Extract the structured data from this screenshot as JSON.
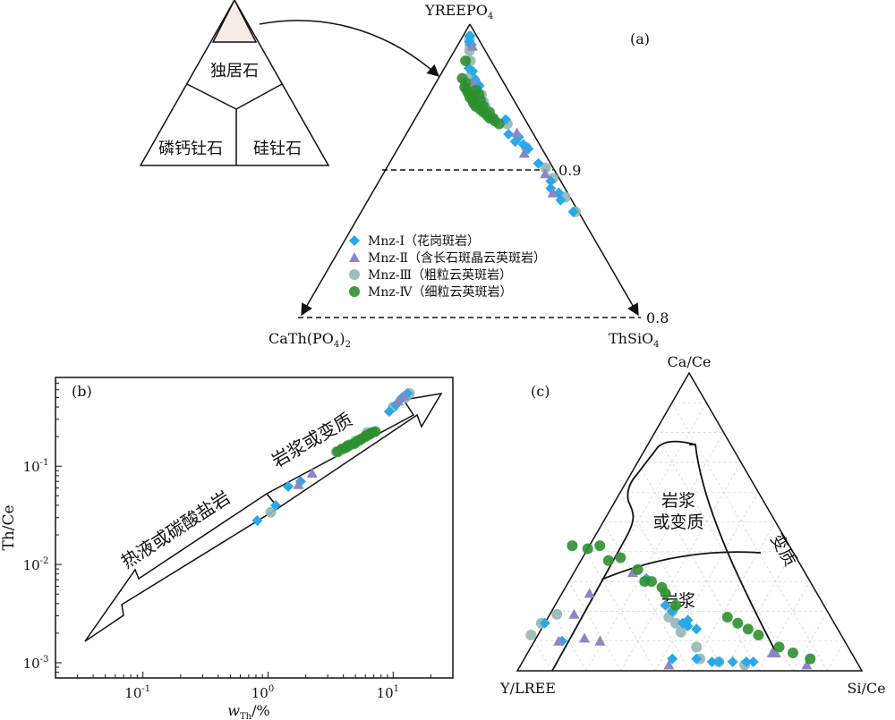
{
  "colors": {
    "mnz1": "#2aa8e8",
    "mnz2": "#8c86c4",
    "mnz3": "#95b7b4",
    "mnz4": "#2f8f2f",
    "line": "#111111",
    "grid": "#cfcfcf",
    "apex_fill": "#f6ece6"
  },
  "series": [
    {
      "key": "mnz1",
      "name": "Mnz-Ⅰ",
      "desc": "（花岗斑岩）",
      "marker": "diamond"
    },
    {
      "key": "mnz2",
      "name": "Mnz-Ⅱ",
      "desc": "（含长石斑晶云英斑岩）",
      "marker": "triangle"
    },
    {
      "key": "mnz3",
      "name": "Mnz-Ⅲ",
      "desc": "（粗粒云英斑岩）",
      "marker": "circle"
    },
    {
      "key": "mnz4",
      "name": "Mnz-Ⅳ",
      "desc": "（细粒云英斑岩）",
      "marker": "circle"
    }
  ],
  "chart_data": [
    {
      "type": "scatter",
      "panel": "(a)",
      "subtype": "ternary",
      "apex_top": "YREEPO",
      "apex_top_sub": "4",
      "apex_left_main": "CaTh",
      "apex_left_paren": "(PO",
      "apex_left_sub": "4",
      "apex_left_close": ")",
      "apex_left_sub2": "2",
      "apex_right": "ThSiO",
      "apex_right_sub": "4",
      "guide_lines": [
        {
          "label": "0.9",
          "top_fraction": 0.9
        },
        {
          "label": "0.8",
          "top_fraction": 0.8
        }
      ],
      "inset_labels": {
        "top": "独居石",
        "left": "磷钙钍石",
        "right": "硅钍石"
      },
      "note": "Axes start at top fraction 0.8; values given as top-component fraction and right share",
      "points": {
        "mnz1": [
          [
            0.992,
            0.46
          ],
          [
            0.992,
            0.53
          ],
          [
            0.988,
            0.47
          ],
          [
            0.986,
            0.56
          ],
          [
            0.97,
            0.48
          ],
          [
            0.968,
            0.55
          ],
          [
            0.962,
            0.58
          ],
          [
            0.958,
            0.63
          ],
          [
            0.955,
            0.57
          ],
          [
            0.935,
            0.82
          ],
          [
            0.925,
            0.8
          ],
          [
            0.923,
            0.87
          ],
          [
            0.92,
            0.83
          ],
          [
            0.918,
            0.88
          ],
          [
            0.915,
            0.9
          ],
          [
            0.905,
            0.92
          ],
          [
            0.893,
            0.94
          ],
          [
            0.888,
            0.92
          ],
          [
            0.885,
            0.95
          ],
          [
            0.88,
            0.94
          ],
          [
            0.872,
            0.97
          ]
        ],
        "mnz2": [
          [
            0.985,
            0.6
          ],
          [
            0.952,
            0.54
          ],
          [
            0.96,
            0.56
          ],
          [
            0.926,
            0.87
          ],
          [
            0.912,
            0.86
          ],
          [
            0.898,
            0.93
          ],
          [
            0.885,
            0.92
          ]
        ],
        "mnz3": [
          [
            0.99,
            0.48
          ],
          [
            0.986,
            0.5
          ],
          [
            0.982,
            0.49
          ],
          [
            0.975,
            0.51
          ],
          [
            0.965,
            0.52
          ],
          [
            0.962,
            0.57
          ],
          [
            0.958,
            0.61
          ],
          [
            0.952,
            0.64
          ],
          [
            0.947,
            0.65
          ],
          [
            0.944,
            0.66
          ],
          [
            0.932,
            0.82
          ],
          [
            0.916,
            0.89
          ],
          [
            0.902,
            0.95
          ],
          [
            0.895,
            0.96
          ],
          [
            0.882,
            0.97
          ],
          [
            0.872,
            0.98
          ]
        ],
        "mnz4": [
          [
            0.975,
            0.4
          ],
          [
            0.963,
            0.38
          ],
          [
            0.96,
            0.44
          ],
          [
            0.957,
            0.43
          ],
          [
            0.955,
            0.46
          ],
          [
            0.953,
            0.48
          ],
          [
            0.95,
            0.5
          ],
          [
            0.948,
            0.53
          ],
          [
            0.946,
            0.54
          ],
          [
            0.944,
            0.56
          ],
          [
            0.942,
            0.6
          ],
          [
            0.94,
            0.63
          ],
          [
            0.938,
            0.66
          ],
          [
            0.936,
            0.68
          ],
          [
            0.934,
            0.72
          ],
          [
            0.932,
            0.75
          ],
          [
            0.955,
            0.58
          ],
          [
            0.952,
            0.61
          ],
          [
            0.948,
            0.62
          ],
          [
            0.944,
            0.64
          ],
          [
            0.94,
            0.69
          ],
          [
            0.936,
            0.71
          ]
        ]
      }
    },
    {
      "type": "scatter",
      "panel": "(b)",
      "xlabel_main": "w",
      "xlabel_sub": "Th",
      "xlabel_unit": "/%",
      "ylabel": "Th/Ce",
      "xscale": "log",
      "yscale": "log",
      "xlim": [
        0.02,
        30
      ],
      "ylim": [
        0.0007,
        0.8
      ],
      "xticks": [
        {
          "base": "10",
          "exp": "-1",
          "value": 0.1
        },
        {
          "base": "10",
          "exp": "0",
          "value": 1
        },
        {
          "base": "10",
          "exp": "1",
          "value": 10
        }
      ],
      "yticks": [
        {
          "base": "10",
          "exp": "-3",
          "value": 0.001
        },
        {
          "base": "10",
          "exp": "-2",
          "value": 0.01
        },
        {
          "base": "10",
          "exp": "-1",
          "value": 0.1
        }
      ],
      "arrow_upper_label": "岩浆或变质",
      "arrow_lower_label": "热液或碳酸盐岩",
      "points": {
        "mnz1": [
          [
            0.82,
            0.028
          ],
          [
            1.15,
            0.04
          ],
          [
            1.45,
            0.062
          ],
          [
            1.82,
            0.07
          ],
          [
            9.3,
            0.36
          ],
          [
            10.5,
            0.42
          ],
          [
            11.5,
            0.48
          ],
          [
            12.5,
            0.52
          ],
          [
            13.0,
            0.55
          ],
          [
            11.8,
            0.5
          ]
        ],
        "mnz2": [
          [
            1.75,
            0.065
          ],
          [
            2.25,
            0.085
          ],
          [
            11.0,
            0.46
          ],
          [
            12.2,
            0.52
          ]
        ],
        "mnz3": [
          [
            1.05,
            0.034
          ],
          [
            3.5,
            0.14
          ],
          [
            4.0,
            0.15
          ],
          [
            4.4,
            0.16
          ],
          [
            5.0,
            0.18
          ],
          [
            6.2,
            0.22
          ],
          [
            10.0,
            0.4
          ],
          [
            12.5,
            0.5
          ],
          [
            13.5,
            0.55
          ]
        ],
        "mnz4": [
          [
            3.6,
            0.14
          ],
          [
            3.9,
            0.15
          ],
          [
            4.2,
            0.155
          ],
          [
            4.5,
            0.165
          ],
          [
            4.9,
            0.17
          ],
          [
            5.2,
            0.18
          ],
          [
            5.6,
            0.19
          ],
          [
            6.0,
            0.2
          ],
          [
            6.4,
            0.21
          ],
          [
            6.8,
            0.22
          ],
          [
            7.2,
            0.225
          ],
          [
            4.3,
            0.16
          ],
          [
            5.4,
            0.185
          ],
          [
            6.1,
            0.205
          ],
          [
            6.6,
            0.215
          ]
        ]
      }
    },
    {
      "type": "scatter",
      "panel": "(c)",
      "subtype": "ternary",
      "apex_top": "Ca/Ce",
      "apex_left": "Y/LREE",
      "apex_right": "Si/Ce",
      "field_labels": {
        "magmatic_or_meta_l1": "岩浆",
        "magmatic_or_meta_l2": "或变质",
        "magmatic": "岩浆",
        "metamorphic": "变质"
      },
      "note": "Points given as ternary fractions [Ca/Ce, Y/LREE, Si/Ce]",
      "points": {
        "mnz1": [
          [
            0.16,
            0.84,
            0.0
          ],
          [
            0.1,
            0.82,
            0.08
          ],
          [
            0.22,
            0.46,
            0.32
          ],
          [
            0.16,
            0.44,
            0.4
          ],
          [
            0.17,
            0.42,
            0.41
          ],
          [
            0.15,
            0.43,
            0.42
          ],
          [
            0.2,
            0.45,
            0.35
          ],
          [
            0.14,
            0.41,
            0.45
          ],
          [
            0.04,
            0.46,
            0.5
          ],
          [
            0.03,
            0.42,
            0.55
          ],
          [
            0.03,
            0.4,
            0.57
          ],
          [
            0.03,
            0.36,
            0.61
          ],
          [
            0.03,
            0.32,
            0.65
          ],
          [
            0.03,
            0.3,
            0.67
          ],
          [
            0.31,
            0.47,
            0.22
          ],
          [
            0.04,
            0.53,
            0.43
          ]
        ],
        "mnz2": [
          [
            0.1,
            0.83,
            0.07
          ],
          [
            0.19,
            0.74,
            0.07
          ],
          [
            0.11,
            0.75,
            0.14
          ],
          [
            0.1,
            0.71,
            0.19
          ],
          [
            0.02,
            0.55,
            0.43
          ],
          [
            0.02,
            0.15,
            0.83
          ],
          [
            0.06,
            0.23,
            0.71
          ],
          [
            0.06,
            0.22,
            0.72
          ],
          [
            0.33,
            0.5,
            0.17
          ],
          [
            0.26,
            0.66,
            0.08
          ]
        ],
        "mnz3": [
          [
            0.16,
            0.85,
            -0.01
          ],
          [
            0.12,
            0.9,
            -0.02
          ],
          [
            0.19,
            0.79,
            0.02
          ],
          [
            0.2,
            0.45,
            0.35
          ],
          [
            0.18,
            0.47,
            0.35
          ],
          [
            0.16,
            0.46,
            0.38
          ],
          [
            0.13,
            0.46,
            0.41
          ],
          [
            0.08,
            0.44,
            0.48
          ],
          [
            0.04,
            0.45,
            0.51
          ],
          [
            0.03,
            0.4,
            0.57
          ],
          [
            0.02,
            0.33,
            0.65
          ]
        ],
        "mnz4": [
          [
            0.42,
            0.63,
            -0.05
          ],
          [
            0.41,
            0.59,
            0.0
          ],
          [
            0.37,
            0.55,
            0.08
          ],
          [
            0.34,
            0.48,
            0.18
          ],
          [
            0.3,
            0.48,
            0.22
          ],
          [
            0.3,
            0.46,
            0.24
          ],
          [
            0.28,
            0.44,
            0.28
          ],
          [
            0.26,
            0.44,
            0.3
          ],
          [
            0.22,
            0.43,
            0.35
          ],
          [
            0.18,
            0.3,
            0.52
          ],
          [
            0.16,
            0.28,
            0.56
          ],
          [
            0.14,
            0.26,
            0.6
          ],
          [
            0.12,
            0.24,
            0.64
          ],
          [
            0.08,
            0.2,
            0.72
          ],
          [
            0.06,
            0.17,
            0.77
          ],
          [
            0.04,
            0.13,
            0.83
          ],
          [
            0.38,
            0.51,
            0.11
          ],
          [
            0.42,
            0.55,
            0.03
          ]
        ]
      }
    }
  ]
}
